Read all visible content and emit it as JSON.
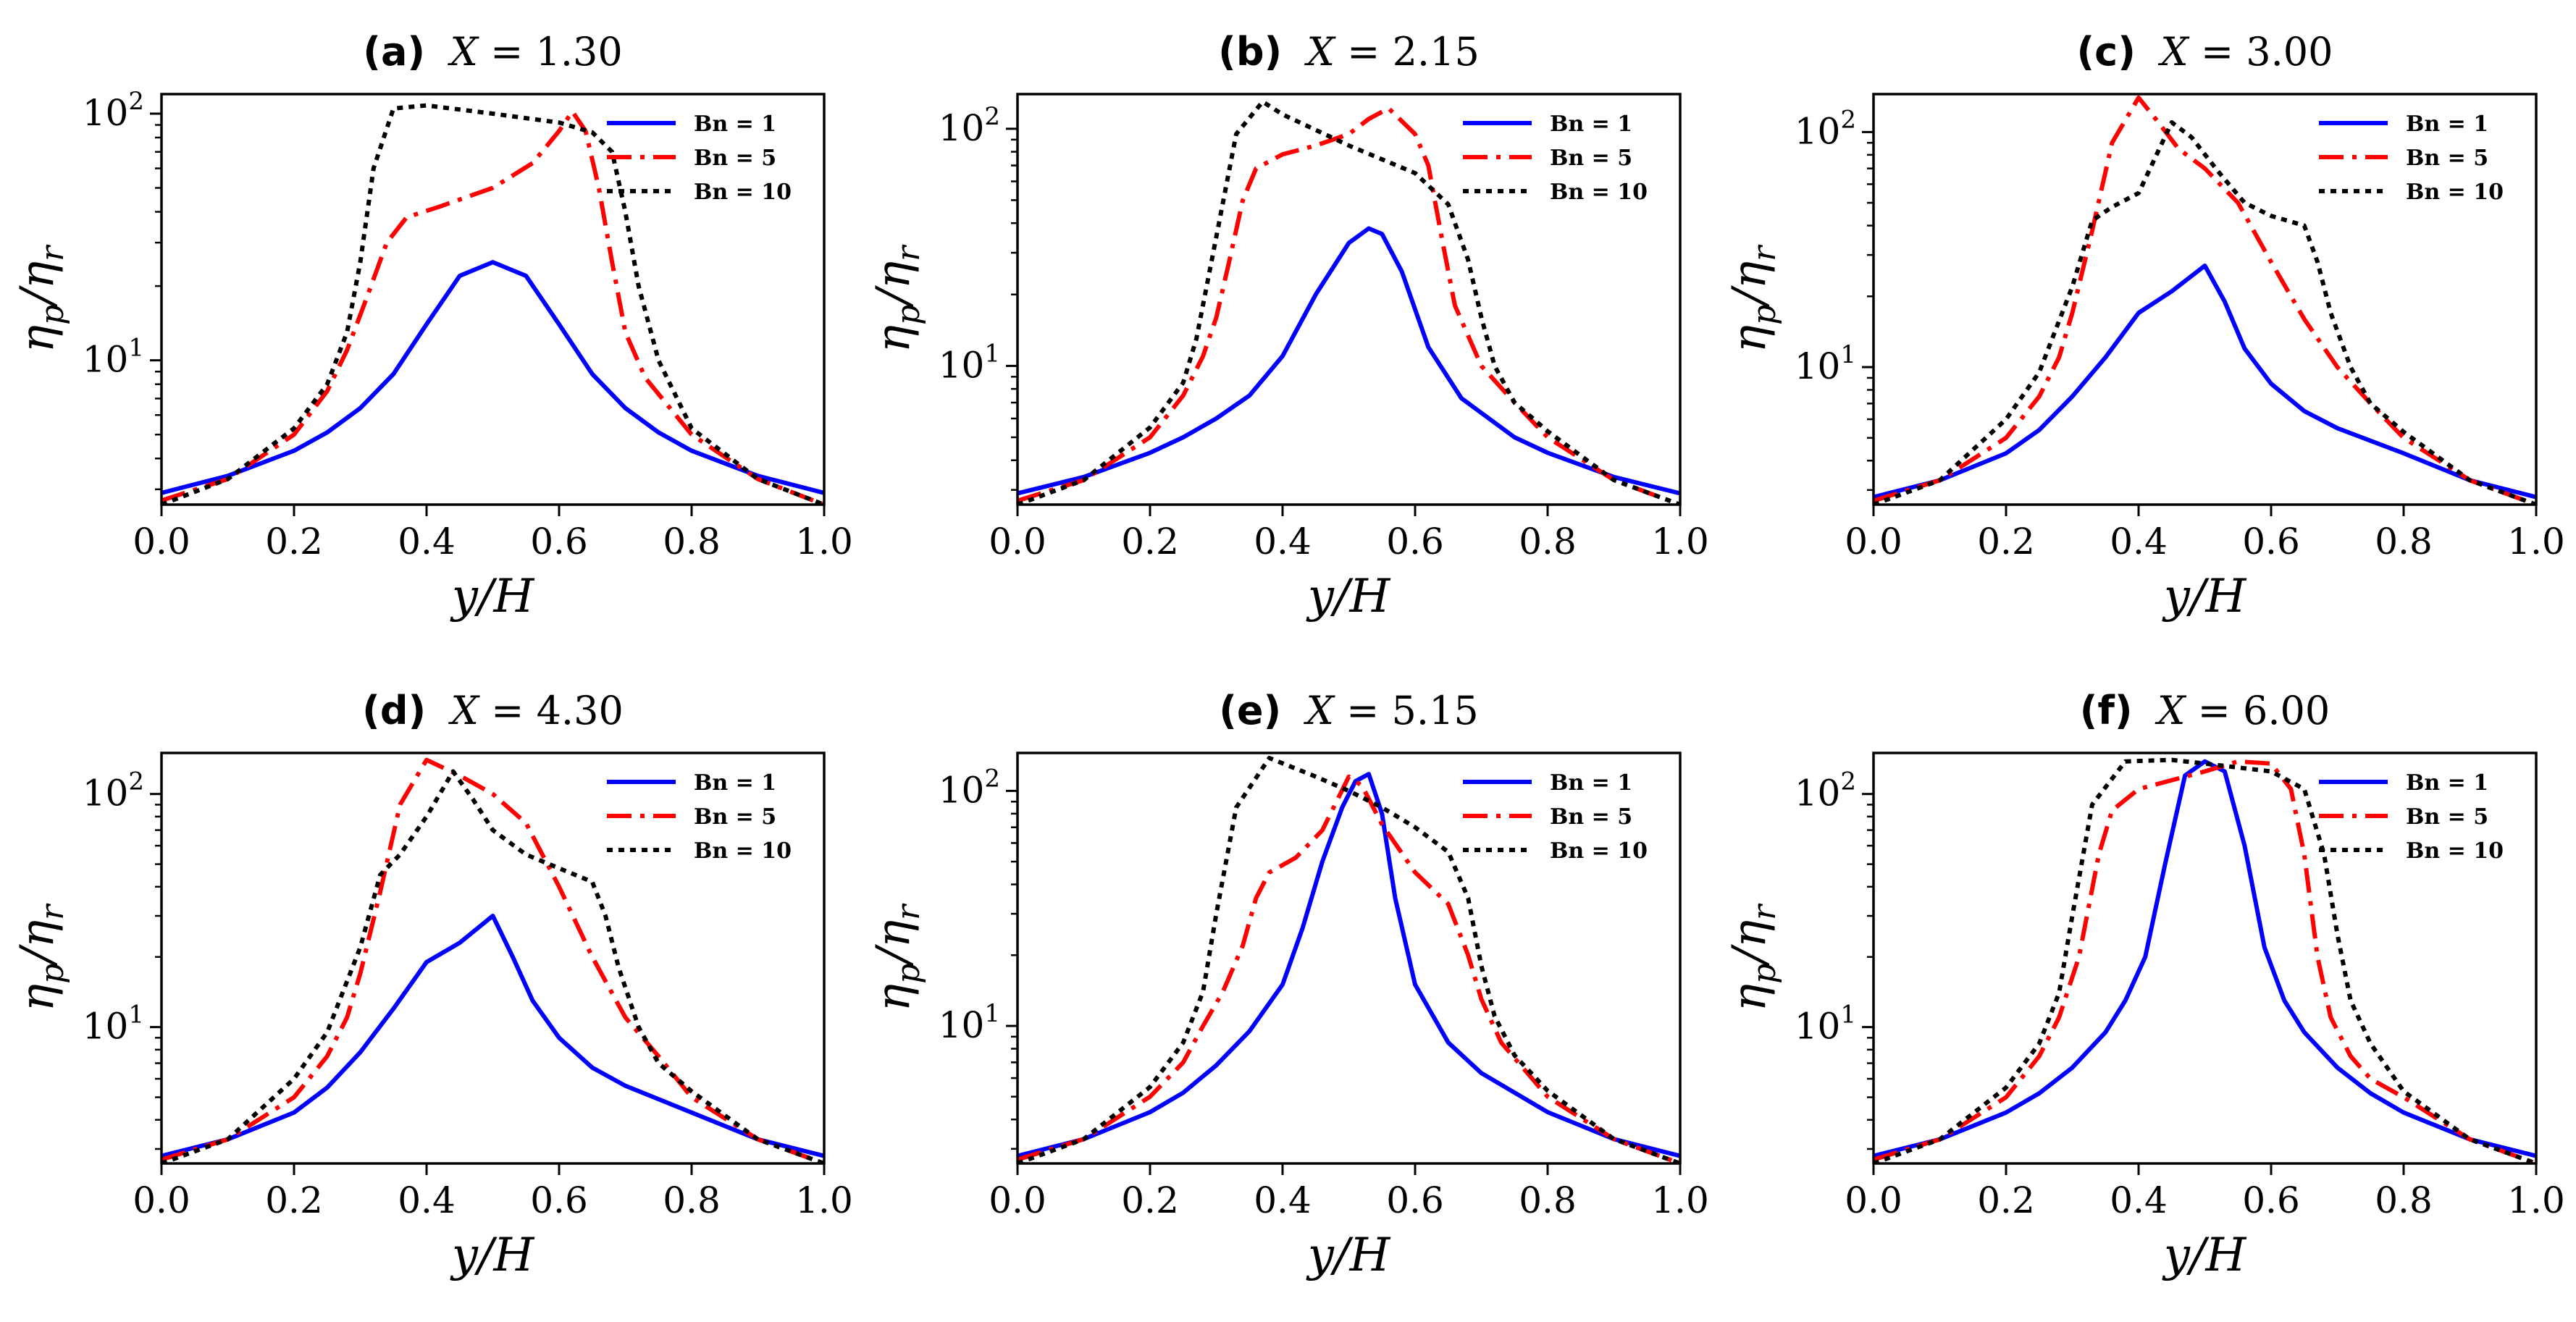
{
  "figure": {
    "x_axis_label": "y/H",
    "y_axis_label": "η_p/η_r",
    "y_label_main": "η",
    "y_label_sub1": "p",
    "y_label_sub2": "r"
  },
  "colors": {
    "Bn = 1": "#0000ff",
    "Bn = 5": "#ff0000",
    "Bn = 10": "#000000"
  },
  "chart_data": [
    {
      "type": "line",
      "panel_label": "(a)",
      "title_var": "X",
      "title_value": "= 1.30",
      "x_ticks": [
        "0.0",
        "0.2",
        "0.4",
        "0.6",
        "0.8",
        "1.0"
      ],
      "y_ticks": [
        {
          "base": "10",
          "exp": "1"
        },
        {
          "base": "10",
          "exp": "2"
        }
      ],
      "xlim": [
        0,
        1
      ],
      "ylim": [
        2.6,
        120
      ],
      "yscale": "log",
      "legend_position": "top-right",
      "series": [
        {
          "name": "Bn = 1",
          "x": [
            0,
            0.1,
            0.2,
            0.25,
            0.3,
            0.35,
            0.4,
            0.45,
            0.5,
            0.55,
            0.6,
            0.65,
            0.7,
            0.75,
            0.8,
            0.9,
            1
          ],
          "y": [
            2.9,
            3.4,
            4.3,
            5.1,
            6.4,
            8.8,
            14,
            22,
            25,
            22,
            14,
            8.8,
            6.4,
            5.1,
            4.3,
            3.4,
            2.9
          ]
        },
        {
          "name": "Bn = 5",
          "x": [
            0,
            0.1,
            0.2,
            0.25,
            0.28,
            0.31,
            0.34,
            0.37,
            0.42,
            0.5,
            0.56,
            0.6,
            0.62,
            0.64,
            0.66,
            0.68,
            0.7,
            0.73,
            0.8,
            0.9,
            1
          ],
          "y": [
            2.7,
            3.3,
            5.0,
            7.5,
            11,
            18,
            30,
            38,
            42,
            50,
            63,
            85,
            102,
            85,
            50,
            25,
            13,
            8.5,
            5.0,
            3.3,
            2.6
          ]
        },
        {
          "name": "Bn = 10",
          "x": [
            0,
            0.1,
            0.2,
            0.25,
            0.28,
            0.3,
            0.32,
            0.35,
            0.4,
            0.5,
            0.6,
            0.65,
            0.68,
            0.7,
            0.72,
            0.75,
            0.8,
            0.9,
            1
          ],
          "y": [
            2.6,
            3.3,
            5.3,
            8.0,
            13,
            25,
            60,
            105,
            108,
            100,
            92,
            84,
            70,
            40,
            20,
            10,
            5.3,
            3.3,
            2.6
          ]
        }
      ]
    },
    {
      "type": "line",
      "panel_label": "(b)",
      "title_var": "X",
      "title_value": "= 2.15",
      "x_ticks": [
        "0.0",
        "0.2",
        "0.4",
        "0.6",
        "0.8",
        "1.0"
      ],
      "y_ticks": [
        {
          "base": "10",
          "exp": "1"
        },
        {
          "base": "10",
          "exp": "2"
        }
      ],
      "xlim": [
        0,
        1
      ],
      "ylim": [
        2.6,
        140
      ],
      "yscale": "log",
      "legend_position": "top-right",
      "series": [
        {
          "name": "Bn = 1",
          "x": [
            0,
            0.1,
            0.2,
            0.25,
            0.3,
            0.35,
            0.4,
            0.45,
            0.5,
            0.53,
            0.55,
            0.58,
            0.62,
            0.67,
            0.75,
            0.8,
            0.9,
            1
          ],
          "y": [
            2.9,
            3.4,
            4.3,
            5.0,
            6.0,
            7.5,
            11,
            20,
            33,
            38,
            36,
            25,
            12,
            7.3,
            5.0,
            4.3,
            3.4,
            2.9
          ]
        },
        {
          "name": "Bn = 5",
          "x": [
            0,
            0.1,
            0.2,
            0.25,
            0.28,
            0.3,
            0.32,
            0.34,
            0.36,
            0.4,
            0.45,
            0.5,
            0.53,
            0.56,
            0.6,
            0.62,
            0.64,
            0.66,
            0.7,
            0.75,
            0.8,
            0.9,
            1
          ],
          "y": [
            2.7,
            3.3,
            5.0,
            7.5,
            11,
            16,
            28,
            50,
            68,
            78,
            85,
            95,
            110,
            122,
            95,
            70,
            35,
            18,
            10,
            7.0,
            5.0,
            3.3,
            2.6
          ]
        },
        {
          "name": "Bn = 10",
          "x": [
            0,
            0.1,
            0.2,
            0.25,
            0.27,
            0.3,
            0.33,
            0.37,
            0.4,
            0.5,
            0.6,
            0.65,
            0.68,
            0.7,
            0.72,
            0.75,
            0.8,
            0.9,
            1
          ],
          "y": [
            2.6,
            3.3,
            5.5,
            8.5,
            13,
            35,
            95,
            130,
            115,
            85,
            65,
            48,
            28,
            16,
            10,
            7.0,
            5.3,
            3.3,
            2.6
          ]
        }
      ]
    },
    {
      "type": "line",
      "panel_label": "(c)",
      "title_var": "X",
      "title_value": "= 3.00",
      "x_ticks": [
        "0.0",
        "0.2",
        "0.4",
        "0.6",
        "0.8",
        "1.0"
      ],
      "y_ticks": [
        {
          "base": "10",
          "exp": "1"
        },
        {
          "base": "10",
          "exp": "2"
        }
      ],
      "xlim": [
        0,
        1
      ],
      "ylim": [
        2.6,
        145
      ],
      "yscale": "log",
      "legend_position": "top-right",
      "series": [
        {
          "name": "Bn = 1",
          "x": [
            0,
            0.1,
            0.2,
            0.25,
            0.3,
            0.35,
            0.4,
            0.45,
            0.5,
            0.53,
            0.56,
            0.6,
            0.65,
            0.7,
            0.8,
            0.9,
            1
          ],
          "y": [
            2.8,
            3.3,
            4.3,
            5.4,
            7.5,
            11,
            17,
            21,
            27,
            19,
            12,
            8.5,
            6.5,
            5.5,
            4.3,
            3.3,
            2.8
          ]
        },
        {
          "name": "Bn = 5",
          "x": [
            0,
            0.1,
            0.2,
            0.25,
            0.28,
            0.3,
            0.33,
            0.36,
            0.4,
            0.43,
            0.46,
            0.5,
            0.55,
            0.6,
            0.65,
            0.7,
            0.75,
            0.8,
            0.9,
            1
          ],
          "y": [
            2.7,
            3.3,
            5.0,
            7.5,
            11,
            17,
            38,
            90,
            140,
            110,
            85,
            70,
            50,
            28,
            16,
            10,
            7.0,
            5.0,
            3.3,
            2.6
          ]
        },
        {
          "name": "Bn = 10",
          "x": [
            0,
            0.1,
            0.2,
            0.25,
            0.3,
            0.33,
            0.36,
            0.4,
            0.45,
            0.48,
            0.52,
            0.56,
            0.6,
            0.65,
            0.67,
            0.69,
            0.72,
            0.75,
            0.8,
            0.9,
            1
          ],
          "y": [
            2.6,
            3.3,
            6.0,
            9.5,
            22,
            42,
            48,
            55,
            110,
            95,
            68,
            50,
            44,
            40,
            28,
            17,
            10,
            7.0,
            5.3,
            3.3,
            2.6
          ]
        }
      ]
    },
    {
      "type": "line",
      "panel_label": "(d)",
      "title_var": "X",
      "title_value": "= 4.30",
      "x_ticks": [
        "0.0",
        "0.2",
        "0.4",
        "0.6",
        "0.8",
        "1.0"
      ],
      "y_ticks": [
        {
          "base": "10",
          "exp": "1"
        },
        {
          "base": "10",
          "exp": "2"
        }
      ],
      "xlim": [
        0,
        1
      ],
      "ylim": [
        2.6,
        150
      ],
      "yscale": "log",
      "legend_position": "top-right",
      "series": [
        {
          "name": "Bn = 1",
          "x": [
            0,
            0.1,
            0.2,
            0.25,
            0.3,
            0.35,
            0.4,
            0.45,
            0.5,
            0.53,
            0.56,
            0.6,
            0.65,
            0.7,
            0.8,
            0.9,
            1
          ],
          "y": [
            2.8,
            3.3,
            4.3,
            5.5,
            7.8,
            12,
            19,
            23,
            30,
            20,
            13,
            9.0,
            6.7,
            5.6,
            4.3,
            3.3,
            2.8
          ]
        },
        {
          "name": "Bn = 5",
          "x": [
            0,
            0.1,
            0.2,
            0.25,
            0.28,
            0.3,
            0.33,
            0.36,
            0.4,
            0.45,
            0.5,
            0.55,
            0.6,
            0.65,
            0.7,
            0.75,
            0.8,
            0.9,
            1
          ],
          "y": [
            2.7,
            3.3,
            5.0,
            7.5,
            11,
            17,
            38,
            90,
            140,
            120,
            100,
            75,
            40,
            20,
            11,
            7.5,
            5.0,
            3.3,
            2.6
          ]
        },
        {
          "name": "Bn = 10",
          "x": [
            0,
            0.1,
            0.2,
            0.25,
            0.3,
            0.33,
            0.36,
            0.4,
            0.44,
            0.47,
            0.5,
            0.55,
            0.6,
            0.65,
            0.67,
            0.69,
            0.72,
            0.75,
            0.8,
            0.9,
            1
          ],
          "y": [
            2.6,
            3.3,
            6.0,
            9.5,
            22,
            45,
            55,
            80,
            125,
            95,
            70,
            55,
            48,
            42,
            30,
            18,
            10,
            7.0,
            5.3,
            3.3,
            2.6
          ]
        }
      ]
    },
    {
      "type": "line",
      "panel_label": "(e)",
      "title_var": "X",
      "title_value": "= 5.15",
      "x_ticks": [
        "0.0",
        "0.2",
        "0.4",
        "0.6",
        "0.8",
        "1.0"
      ],
      "y_ticks": [
        {
          "base": "10",
          "exp": "1"
        },
        {
          "base": "10",
          "exp": "2"
        }
      ],
      "xlim": [
        0,
        1
      ],
      "ylim": [
        2.6,
        145
      ],
      "yscale": "log",
      "legend_position": "top-right",
      "series": [
        {
          "name": "Bn = 1",
          "x": [
            0,
            0.1,
            0.2,
            0.25,
            0.3,
            0.35,
            0.4,
            0.43,
            0.46,
            0.49,
            0.51,
            0.53,
            0.55,
            0.57,
            0.6,
            0.65,
            0.7,
            0.8,
            0.9,
            1
          ],
          "y": [
            2.8,
            3.3,
            4.3,
            5.2,
            6.8,
            9.5,
            15,
            26,
            50,
            85,
            110,
            118,
            80,
            35,
            15,
            8.5,
            6.3,
            4.3,
            3.3,
            2.8
          ]
        },
        {
          "name": "Bn = 5",
          "x": [
            0,
            0.1,
            0.2,
            0.25,
            0.28,
            0.31,
            0.34,
            0.36,
            0.38,
            0.42,
            0.46,
            0.5,
            0.52,
            0.55,
            0.6,
            0.65,
            0.68,
            0.7,
            0.73,
            0.8,
            0.9,
            1
          ],
          "y": [
            2.7,
            3.3,
            5.0,
            7.0,
            10,
            14,
            22,
            35,
            45,
            52,
            68,
            115,
            105,
            72,
            45,
            33,
            20,
            13,
            8.5,
            5.0,
            3.3,
            2.6
          ]
        },
        {
          "name": "Bn = 10",
          "x": [
            0,
            0.1,
            0.2,
            0.25,
            0.28,
            0.3,
            0.33,
            0.38,
            0.45,
            0.5,
            0.55,
            0.6,
            0.65,
            0.68,
            0.7,
            0.72,
            0.75,
            0.8,
            0.9,
            1
          ],
          "y": [
            2.6,
            3.3,
            5.5,
            8.5,
            14,
            30,
            85,
            138,
            115,
            100,
            85,
            70,
            55,
            35,
            18,
            11,
            7.5,
            5.3,
            3.3,
            2.6
          ]
        }
      ]
    },
    {
      "type": "line",
      "panel_label": "(f)",
      "title_var": "X",
      "title_value": "= 6.00",
      "x_ticks": [
        "0.0",
        "0.2",
        "0.4",
        "0.6",
        "0.8",
        "1.0"
      ],
      "y_ticks": [
        {
          "base": "10",
          "exp": "1"
        },
        {
          "base": "10",
          "exp": "2"
        }
      ],
      "xlim": [
        0,
        1
      ],
      "ylim": [
        2.6,
        150
      ],
      "yscale": "log",
      "legend_position": "top-right",
      "series": [
        {
          "name": "Bn = 1",
          "x": [
            0,
            0.1,
            0.2,
            0.25,
            0.3,
            0.35,
            0.38,
            0.41,
            0.44,
            0.47,
            0.5,
            0.53,
            0.56,
            0.59,
            0.62,
            0.65,
            0.7,
            0.75,
            0.8,
            0.9,
            1
          ],
          "y": [
            2.8,
            3.3,
            4.3,
            5.2,
            6.7,
            9.5,
            13,
            20,
            50,
            120,
            138,
            125,
            60,
            22,
            13,
            9.5,
            6.7,
            5.2,
            4.3,
            3.3,
            2.8
          ]
        },
        {
          "name": "Bn = 5",
          "x": [
            0,
            0.1,
            0.2,
            0.25,
            0.28,
            0.31,
            0.34,
            0.36,
            0.4,
            0.5,
            0.55,
            0.6,
            0.63,
            0.65,
            0.67,
            0.69,
            0.72,
            0.75,
            0.8,
            0.9,
            1
          ],
          "y": [
            2.7,
            3.3,
            5.0,
            7.5,
            11,
            20,
            55,
            85,
            105,
            125,
            138,
            135,
            105,
            55,
            20,
            11,
            7.5,
            6.0,
            5.0,
            3.3,
            2.6
          ]
        },
        {
          "name": "Bn = 10",
          "x": [
            0,
            0.1,
            0.2,
            0.25,
            0.28,
            0.3,
            0.33,
            0.38,
            0.45,
            0.5,
            0.6,
            0.65,
            0.68,
            0.7,
            0.72,
            0.75,
            0.8,
            0.9,
            1
          ],
          "y": [
            2.6,
            3.3,
            5.5,
            8.5,
            14,
            30,
            90,
            138,
            140,
            135,
            125,
            105,
            55,
            25,
            13,
            8.5,
            5.3,
            3.3,
            2.6
          ]
        }
      ]
    }
  ]
}
